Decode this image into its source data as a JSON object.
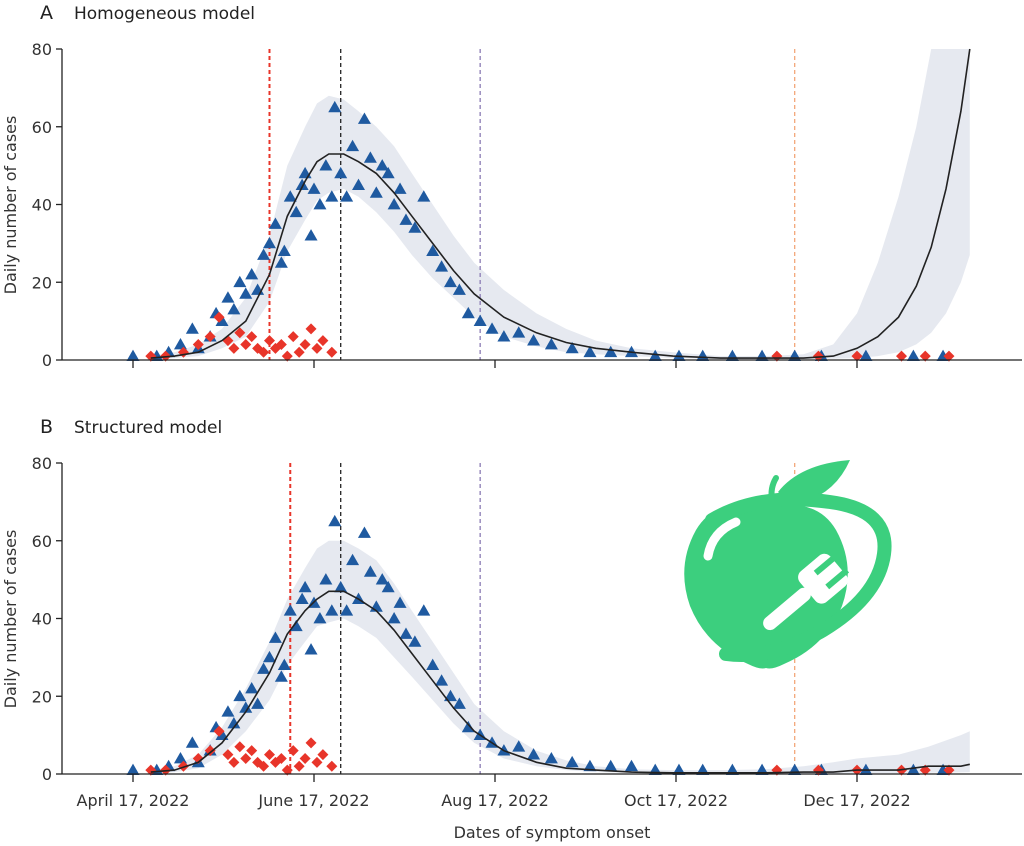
{
  "xlabel": "Dates of symptom onset",
  "x_ticks": [
    "April 17, 2022",
    "June 17, 2022",
    "Aug 17, 2022",
    "Oct 17, 2022",
    "Dec 17, 2022"
  ],
  "colors": {
    "observed": "#1f5aa0",
    "imported": "#e8352a",
    "model_line": "#222222",
    "band": "#e6e9f0",
    "vline_red": "#e8352a",
    "vline_black": "#222222",
    "vline_purple": "#8b7bb5",
    "vline_orange": "#f3a77a",
    "logo": "#3ccf7e"
  },
  "logo": {
    "name": "apple-fork-logo-icon"
  },
  "chart_data": [
    {
      "type": "scatter",
      "letter": "A",
      "title": "Homogeneous model",
      "ylabel": "Daily number of cases",
      "ylim": [
        0,
        80
      ],
      "yticks": [
        "0",
        "20",
        "40",
        "60",
        "80"
      ],
      "xlim": [
        "2022-04-17",
        "2023-02-01"
      ],
      "vlines": [
        {
          "date": "2022-06-02",
          "color": "red"
        },
        {
          "date": "2022-06-26",
          "color": "black"
        },
        {
          "date": "2022-08-12",
          "color": "purple"
        },
        {
          "date": "2022-11-26",
          "color": "orange"
        }
      ],
      "fit": {
        "dates": [
          "2022-04-23",
          "2022-05-01",
          "2022-05-09",
          "2022-05-17",
          "2022-05-25",
          "2022-06-02",
          "2022-06-08",
          "2022-06-14",
          "2022-06-18",
          "2022-06-22",
          "2022-06-27",
          "2022-07-02",
          "2022-07-08",
          "2022-07-14",
          "2022-07-20",
          "2022-07-27",
          "2022-08-03",
          "2022-08-10",
          "2022-08-20",
          "2022-08-31",
          "2022-09-10",
          "2022-09-20",
          "2022-10-02",
          "2022-10-16",
          "2022-11-01",
          "2022-11-16",
          "2022-11-29",
          "2022-12-09",
          "2022-12-17",
          "2022-12-24",
          "2022-12-31",
          "2023-01-06",
          "2023-01-11",
          "2023-01-16",
          "2023-01-21",
          "2023-01-24"
        ],
        "values": [
          0.5,
          1,
          2,
          5,
          10,
          22,
          37,
          46,
          51,
          53,
          53,
          51,
          48,
          43,
          37,
          30,
          23,
          17,
          11,
          7,
          4.5,
          3,
          2,
          1,
          0.5,
          0.5,
          0.5,
          1,
          3,
          6,
          11,
          19,
          29,
          44,
          64,
          80
        ],
        "lower": [
          0.2,
          0.5,
          1,
          3,
          6,
          15,
          28,
          36,
          41,
          43,
          44,
          42,
          38,
          33,
          27,
          21,
          16,
          11,
          6,
          3.5,
          2,
          1.5,
          1,
          0.5,
          0.2,
          0.2,
          0.2,
          0.3,
          0.5,
          1,
          2,
          4,
          7,
          12,
          20,
          27
        ],
        "upper": [
          1,
          2,
          4,
          8,
          16,
          32,
          50,
          60,
          66,
          68,
          67,
          64,
          60,
          55,
          48,
          40,
          32,
          25,
          18,
          12,
          8,
          5,
          3,
          2,
          1,
          1,
          1.5,
          4,
          12,
          25,
          42,
          60,
          80,
          80,
          80,
          80
        ]
      },
      "observed": {
        "dates": [
          "2022-04-17",
          "2022-04-25",
          "2022-04-29",
          "2022-05-03",
          "2022-05-07",
          "2022-05-09",
          "2022-05-13",
          "2022-05-15",
          "2022-05-17",
          "2022-05-19",
          "2022-05-21",
          "2022-05-23",
          "2022-05-25",
          "2022-05-27",
          "2022-05-29",
          "2022-05-31",
          "2022-06-02",
          "2022-06-04",
          "2022-06-06",
          "2022-06-07",
          "2022-06-09",
          "2022-06-11",
          "2022-06-13",
          "2022-06-14",
          "2022-06-16",
          "2022-06-17",
          "2022-06-19",
          "2022-06-21",
          "2022-06-23",
          "2022-06-24",
          "2022-06-26",
          "2022-06-28",
          "2022-06-30",
          "2022-07-02",
          "2022-07-04",
          "2022-07-06",
          "2022-07-08",
          "2022-07-10",
          "2022-07-12",
          "2022-07-14",
          "2022-07-16",
          "2022-07-18",
          "2022-07-21",
          "2022-07-24",
          "2022-07-27",
          "2022-07-30",
          "2022-08-02",
          "2022-08-05",
          "2022-08-08",
          "2022-08-12",
          "2022-08-16",
          "2022-08-20",
          "2022-08-25",
          "2022-08-30",
          "2022-09-05",
          "2022-09-12",
          "2022-09-18",
          "2022-09-25",
          "2022-10-02",
          "2022-10-10",
          "2022-10-18",
          "2022-10-26",
          "2022-11-05",
          "2022-11-15",
          "2022-11-26",
          "2022-12-05",
          "2022-12-20",
          "2023-01-05",
          "2023-01-15"
        ],
        "values": [
          1,
          1,
          2,
          4,
          8,
          3,
          6,
          12,
          10,
          16,
          13,
          20,
          17,
          22,
          18,
          27,
          30,
          35,
          25,
          28,
          42,
          38,
          45,
          48,
          32,
          44,
          40,
          50,
          42,
          65,
          48,
          42,
          55,
          45,
          62,
          52,
          43,
          50,
          48,
          40,
          44,
          36,
          34,
          42,
          28,
          24,
          20,
          18,
          12,
          10,
          8,
          6,
          7,
          5,
          4,
          3,
          2,
          2,
          2,
          1,
          1,
          1,
          1,
          1,
          1,
          1,
          1,
          1,
          1
        ]
      },
      "imported": {
        "dates": [
          "2022-04-23",
          "2022-04-28",
          "2022-05-04",
          "2022-05-09",
          "2022-05-13",
          "2022-05-16",
          "2022-05-19",
          "2022-05-21",
          "2022-05-23",
          "2022-05-25",
          "2022-05-27",
          "2022-05-29",
          "2022-05-31",
          "2022-06-02",
          "2022-06-04",
          "2022-06-06",
          "2022-06-08",
          "2022-06-10",
          "2022-06-12",
          "2022-06-14",
          "2022-06-16",
          "2022-06-18",
          "2022-06-20",
          "2022-06-23",
          "2022-11-20",
          "2022-12-04",
          "2022-12-17",
          "2023-01-01",
          "2023-01-09",
          "2023-01-17"
        ],
        "values": [
          1,
          1,
          2,
          4,
          6,
          11,
          5,
          3,
          7,
          4,
          6,
          3,
          2,
          5,
          3,
          4,
          1,
          6,
          2,
          4,
          8,
          3,
          5,
          2,
          1,
          1,
          1,
          1,
          1,
          1
        ]
      }
    },
    {
      "type": "scatter",
      "letter": "B",
      "title": "Structured model",
      "ylabel": "Daily number of cases",
      "ylim": [
        0,
        80
      ],
      "yticks": [
        "0",
        "20",
        "40",
        "60",
        "80"
      ],
      "xlim": [
        "2022-04-17",
        "2023-02-01"
      ],
      "vlines": [
        {
          "date": "2022-06-09",
          "color": "red"
        },
        {
          "date": "2022-06-26",
          "color": "black"
        },
        {
          "date": "2022-08-12",
          "color": "purple"
        },
        {
          "date": "2022-11-26",
          "color": "orange"
        }
      ],
      "fit": {
        "dates": [
          "2022-04-23",
          "2022-05-01",
          "2022-05-09",
          "2022-05-17",
          "2022-05-25",
          "2022-06-02",
          "2022-06-08",
          "2022-06-14",
          "2022-06-18",
          "2022-06-22",
          "2022-06-27",
          "2022-07-02",
          "2022-07-08",
          "2022-07-14",
          "2022-07-20",
          "2022-07-27",
          "2022-08-03",
          "2022-08-10",
          "2022-08-20",
          "2022-08-31",
          "2022-09-10",
          "2022-09-20",
          "2022-10-02",
          "2022-10-16",
          "2022-11-01",
          "2022-11-16",
          "2022-11-29",
          "2022-12-09",
          "2022-12-17",
          "2022-12-31",
          "2023-01-10",
          "2023-01-21",
          "2023-01-24"
        ],
        "values": [
          0.5,
          1,
          3,
          8,
          16,
          26,
          36,
          42,
          45,
          47,
          47,
          45,
          42,
          37,
          31,
          24,
          17,
          11,
          6,
          3,
          1.5,
          1,
          0.5,
          0.3,
          0.3,
          0.3,
          0.5,
          0.5,
          1,
          1,
          2,
          2,
          2.5
        ],
        "lower": [
          0.2,
          0.5,
          1.5,
          5,
          11,
          19,
          28,
          34,
          38,
          39,
          40,
          38,
          35,
          30,
          25,
          19,
          13,
          8,
          4,
          2,
          1,
          0.5,
          0.3,
          0.1,
          0.1,
          0.1,
          0.1,
          0.1,
          0.2,
          0.2,
          0.3,
          0.4,
          0.5
        ],
        "upper": [
          1,
          2,
          5,
          12,
          22,
          34,
          45,
          53,
          58,
          60,
          60,
          58,
          55,
          49,
          42,
          34,
          26,
          18,
          11,
          6,
          3.5,
          2,
          1.2,
          1,
          1,
          1.2,
          2,
          3,
          4,
          5,
          7,
          10,
          11
        ]
      },
      "observed": {
        "dates": [
          "2022-04-17",
          "2022-04-25",
          "2022-04-29",
          "2022-05-03",
          "2022-05-07",
          "2022-05-09",
          "2022-05-13",
          "2022-05-15",
          "2022-05-17",
          "2022-05-19",
          "2022-05-21",
          "2022-05-23",
          "2022-05-25",
          "2022-05-27",
          "2022-05-29",
          "2022-05-31",
          "2022-06-02",
          "2022-06-04",
          "2022-06-06",
          "2022-06-07",
          "2022-06-09",
          "2022-06-11",
          "2022-06-13",
          "2022-06-14",
          "2022-06-16",
          "2022-06-17",
          "2022-06-19",
          "2022-06-21",
          "2022-06-23",
          "2022-06-24",
          "2022-06-26",
          "2022-06-28",
          "2022-06-30",
          "2022-07-02",
          "2022-07-04",
          "2022-07-06",
          "2022-07-08",
          "2022-07-10",
          "2022-07-12",
          "2022-07-14",
          "2022-07-16",
          "2022-07-18",
          "2022-07-21",
          "2022-07-24",
          "2022-07-27",
          "2022-07-30",
          "2022-08-02",
          "2022-08-05",
          "2022-08-08",
          "2022-08-12",
          "2022-08-16",
          "2022-08-20",
          "2022-08-25",
          "2022-08-30",
          "2022-09-05",
          "2022-09-12",
          "2022-09-18",
          "2022-09-25",
          "2022-10-02",
          "2022-10-10",
          "2022-10-18",
          "2022-10-26",
          "2022-11-05",
          "2022-11-15",
          "2022-11-26",
          "2022-12-05",
          "2022-12-20",
          "2023-01-05",
          "2023-01-15"
        ],
        "values": [
          1,
          1,
          2,
          4,
          8,
          3,
          6,
          12,
          10,
          16,
          13,
          20,
          17,
          22,
          18,
          27,
          30,
          35,
          25,
          28,
          42,
          38,
          45,
          48,
          32,
          44,
          40,
          50,
          42,
          65,
          48,
          42,
          55,
          45,
          62,
          52,
          43,
          50,
          48,
          40,
          44,
          36,
          34,
          42,
          28,
          24,
          20,
          18,
          12,
          10,
          8,
          6,
          7,
          5,
          4,
          3,
          2,
          2,
          2,
          1,
          1,
          1,
          1,
          1,
          1,
          1,
          1,
          1,
          1
        ]
      },
      "imported": {
        "dates": [
          "2022-04-23",
          "2022-04-28",
          "2022-05-04",
          "2022-05-09",
          "2022-05-13",
          "2022-05-16",
          "2022-05-19",
          "2022-05-21",
          "2022-05-23",
          "2022-05-25",
          "2022-05-27",
          "2022-05-29",
          "2022-05-31",
          "2022-06-02",
          "2022-06-04",
          "2022-06-06",
          "2022-06-08",
          "2022-06-10",
          "2022-06-12",
          "2022-06-14",
          "2022-06-16",
          "2022-06-18",
          "2022-06-20",
          "2022-06-23",
          "2022-11-20",
          "2022-12-04",
          "2022-12-17",
          "2023-01-01",
          "2023-01-09",
          "2023-01-17"
        ],
        "values": [
          1,
          1,
          2,
          4,
          6,
          11,
          5,
          3,
          7,
          4,
          6,
          3,
          2,
          5,
          3,
          4,
          1,
          6,
          2,
          4,
          8,
          3,
          5,
          2,
          1,
          1,
          1,
          1,
          1,
          1
        ]
      }
    }
  ]
}
